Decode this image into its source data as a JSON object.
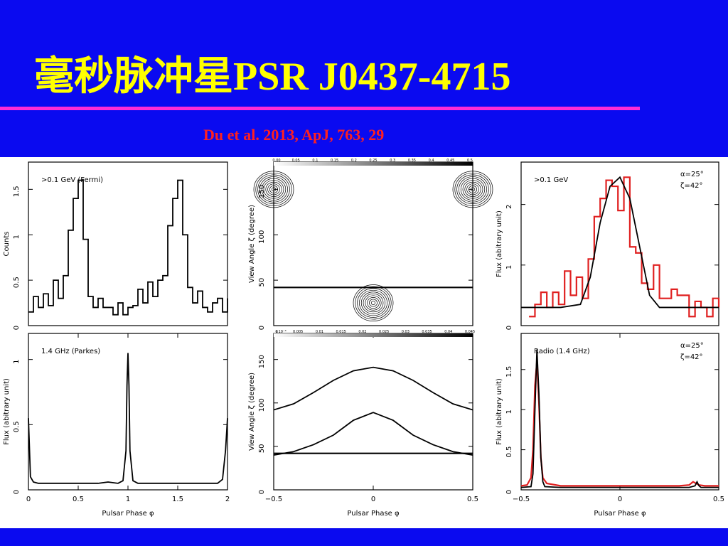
{
  "slide": {
    "title": "毫秒脉冲星PSR J0437-4715",
    "citation": "Du et al. 2013, ApJ, 763, 29",
    "colors": {
      "background": "#0a0af0",
      "title": "#ffff00",
      "rule": "#ff2bd6",
      "citation": "#ff2020",
      "model": "#000000",
      "observed": "#e02020"
    }
  },
  "chart_data": [
    {
      "id": "gamma_counts",
      "type": "line",
      "annotation": ">0.1 GeV (Fermi)",
      "xlabel": "",
      "ylabel": "Counts",
      "xlim": [
        0,
        2
      ],
      "ylim": [
        0,
        1.8
      ],
      "yticks": [
        0,
        0.5,
        1,
        1.5
      ],
      "xticks": [],
      "series": [
        {
          "style": "step",
          "color": "#000000",
          "x": [
            0.0,
            0.05,
            0.1,
            0.15,
            0.2,
            0.25,
            0.3,
            0.35,
            0.4,
            0.45,
            0.5,
            0.55,
            0.6,
            0.65,
            0.7,
            0.75,
            0.8,
            0.85,
            0.9,
            0.95,
            1.0,
            1.05,
            1.1,
            1.15,
            1.2,
            1.25,
            1.3,
            1.35,
            1.4,
            1.45,
            1.5,
            1.55,
            1.6,
            1.65,
            1.7,
            1.75,
            1.8,
            1.85,
            1.9,
            1.95,
            2.0
          ],
          "y": [
            0.15,
            0.32,
            0.2,
            0.35,
            0.22,
            0.5,
            0.3,
            0.55,
            1.05,
            1.4,
            1.6,
            0.95,
            0.32,
            0.2,
            0.3,
            0.2,
            0.2,
            0.12,
            0.25,
            0.12,
            0.2,
            0.22,
            0.4,
            0.25,
            0.48,
            0.32,
            0.5,
            0.55,
            1.1,
            1.4,
            1.6,
            1.0,
            0.42,
            0.25,
            0.38,
            0.2,
            0.15,
            0.25,
            0.3,
            0.15,
            0.3
          ]
        }
      ]
    },
    {
      "id": "radio_flux",
      "type": "line",
      "annotation": "1.4 GHz (Parkes)",
      "xlabel": "Pulsar Phase φ",
      "ylabel": "Flux (abitrary unit)",
      "xlim": [
        0,
        2
      ],
      "ylim": [
        0,
        1.2
      ],
      "yticks": [
        0,
        0.5,
        1
      ],
      "xticks": [
        0,
        0.5,
        1,
        1.5,
        2
      ],
      "series": [
        {
          "style": "line",
          "color": "#000000",
          "x": [
            0,
            0.02,
            0.05,
            0.1,
            0.3,
            0.5,
            0.7,
            0.8,
            0.9,
            0.95,
            0.98,
            0.99,
            1.0,
            1.01,
            1.02,
            1.05,
            1.1,
            1.3,
            1.5,
            1.7,
            1.9,
            1.95,
            1.98,
            2.0
          ],
          "y": [
            0.55,
            0.1,
            0.06,
            0.05,
            0.05,
            0.05,
            0.05,
            0.06,
            0.05,
            0.07,
            0.3,
            0.8,
            1.05,
            0.8,
            0.3,
            0.07,
            0.05,
            0.05,
            0.05,
            0.05,
            0.05,
            0.08,
            0.3,
            0.55
          ]
        }
      ]
    },
    {
      "id": "emission_map_gamma",
      "type": "heatmap",
      "xlabel": "",
      "ylabel": "View Angle ζ (degree)",
      "xlim": [
        -0.5,
        0.5
      ],
      "ylim": [
        0,
        180
      ],
      "yticks": [
        0,
        50,
        100,
        150
      ],
      "xticks": [],
      "colorbar_ticks": [
        "0.00",
        "0.05",
        "0.1",
        "0.15",
        "0.2",
        "0.25",
        "0.3",
        "0.35",
        "0.4",
        "0.45",
        "0.5"
      ],
      "lobes": [
        {
          "cx": 0,
          "cy": 25,
          "rx": 0.1,
          "ry": 20
        },
        {
          "cx": -0.5,
          "cy": 150,
          "rx": 0.1,
          "ry": 20
        },
        {
          "cx": 0.5,
          "cy": 150,
          "rx": 0.1,
          "ry": 20
        }
      ],
      "view_angle_line": 42
    },
    {
      "id": "emission_map_radio",
      "type": "line",
      "xlabel": "Pulsar Phase φ",
      "ylabel": "View Angle ζ (degree)",
      "xlim": [
        -0.5,
        0.5
      ],
      "ylim": [
        0,
        180
      ],
      "yticks": [
        0,
        50,
        100,
        150
      ],
      "xticks": [
        -0.5,
        0,
        0.5
      ],
      "colorbar_ticks": [
        "0",
        "0.005",
        "0.01",
        "0.015",
        "0.02",
        "0.025",
        "0.03",
        "0.035",
        "0.04",
        "0.045"
      ],
      "colorbar_exponent": "×10⁻³",
      "series": [
        {
          "name": "",
          "color": "#000000",
          "x": [
            -0.5,
            -0.4,
            -0.3,
            -0.2,
            -0.1,
            0,
            0.1,
            0.2,
            0.3,
            0.4,
            0.5
          ],
          "y": [
            92,
            99,
            112,
            126,
            137,
            141,
            137,
            126,
            112,
            99,
            92
          ]
        },
        {
          "name": "",
          "color": "#000000",
          "x": [
            -0.5,
            -0.4,
            -0.3,
            -0.2,
            -0.1,
            0,
            0.1,
            0.2,
            0.3,
            0.4,
            0.5
          ],
          "y": [
            40,
            44,
            52,
            63,
            80,
            89,
            80,
            63,
            52,
            44,
            40
          ]
        }
      ],
      "view_angle_line": 42
    },
    {
      "id": "gamma_model",
      "type": "line",
      "annotation": ">0.1 GeV",
      "params": [
        "α=25°",
        "ζ=42°"
      ],
      "xlabel": "",
      "ylabel": "Flux (abitrary unit)",
      "xlim": [
        -0.5,
        0.5
      ],
      "ylim": [
        0,
        2.7
      ],
      "yticks": [
        0,
        1,
        2
      ],
      "xticks": [],
      "series": [
        {
          "style": "step",
          "color": "#e02020",
          "x": [
            -0.46,
            -0.43,
            -0.4,
            -0.37,
            -0.34,
            -0.31,
            -0.28,
            -0.25,
            -0.22,
            -0.19,
            -0.16,
            -0.13,
            -0.1,
            -0.07,
            -0.04,
            -0.01,
            0.02,
            0.05,
            0.08,
            0.11,
            0.14,
            0.17,
            0.2,
            0.23,
            0.26,
            0.29,
            0.32,
            0.35,
            0.38,
            0.41,
            0.44,
            0.47,
            0.5
          ],
          "y": [
            0.15,
            0.35,
            0.55,
            0.3,
            0.55,
            0.35,
            0.9,
            0.5,
            0.8,
            0.45,
            1.1,
            1.8,
            2.1,
            2.4,
            2.3,
            1.9,
            2.45,
            1.3,
            1.2,
            0.7,
            0.6,
            1.0,
            0.45,
            0.45,
            0.6,
            0.5,
            0.5,
            0.15,
            0.4,
            0.3,
            0.15,
            0.45,
            0.3
          ]
        },
        {
          "style": "line",
          "color": "#000000",
          "x": [
            -0.5,
            -0.3,
            -0.2,
            -0.15,
            -0.1,
            -0.05,
            0,
            0.05,
            0.1,
            0.15,
            0.2,
            0.3,
            0.5
          ],
          "y": [
            0.3,
            0.3,
            0.35,
            0.8,
            1.7,
            2.3,
            2.45,
            2.1,
            1.3,
            0.5,
            0.3,
            0.3,
            0.3
          ]
        }
      ]
    },
    {
      "id": "radio_model",
      "type": "line",
      "annotation": "Radio (1.4 GHz)",
      "params": [
        "α=25°",
        "ζ=42°"
      ],
      "xlabel": "Pulsar Phase φ",
      "ylabel": "Flux (abitrary unit)",
      "xlim": [
        -0.5,
        0.5
      ],
      "ylim": [
        0,
        1.95
      ],
      "yticks": [
        0,
        0.5,
        1,
        1.5
      ],
      "xticks": [
        -0.5,
        0,
        0.5
      ],
      "series": [
        {
          "style": "line",
          "color": "#e02020",
          "x": [
            -0.5,
            -0.47,
            -0.45,
            -0.44,
            -0.43,
            -0.42,
            -0.41,
            -0.4,
            -0.39,
            -0.37,
            -0.3,
            0,
            0.3,
            0.35,
            0.37,
            0.4,
            0.43,
            0.5
          ],
          "y": [
            0.05,
            0.06,
            0.15,
            0.5,
            1.3,
            1.6,
            1.1,
            0.4,
            0.15,
            0.08,
            0.05,
            0.05,
            0.05,
            0.06,
            0.1,
            0.06,
            0.05,
            0.05
          ]
        },
        {
          "style": "line",
          "color": "#000000",
          "x": [
            -0.5,
            -0.45,
            -0.44,
            -0.43,
            -0.42,
            -0.41,
            -0.4,
            -0.39,
            -0.38,
            -0.3,
            0,
            0.35,
            0.38,
            0.39,
            0.4,
            0.41,
            0.5
          ],
          "y": [
            0.03,
            0.04,
            0.2,
            1.0,
            1.75,
            1.2,
            0.4,
            0.1,
            0.04,
            0.03,
            0.03,
            0.03,
            0.05,
            0.1,
            0.05,
            0.03,
            0.03
          ]
        }
      ]
    }
  ]
}
